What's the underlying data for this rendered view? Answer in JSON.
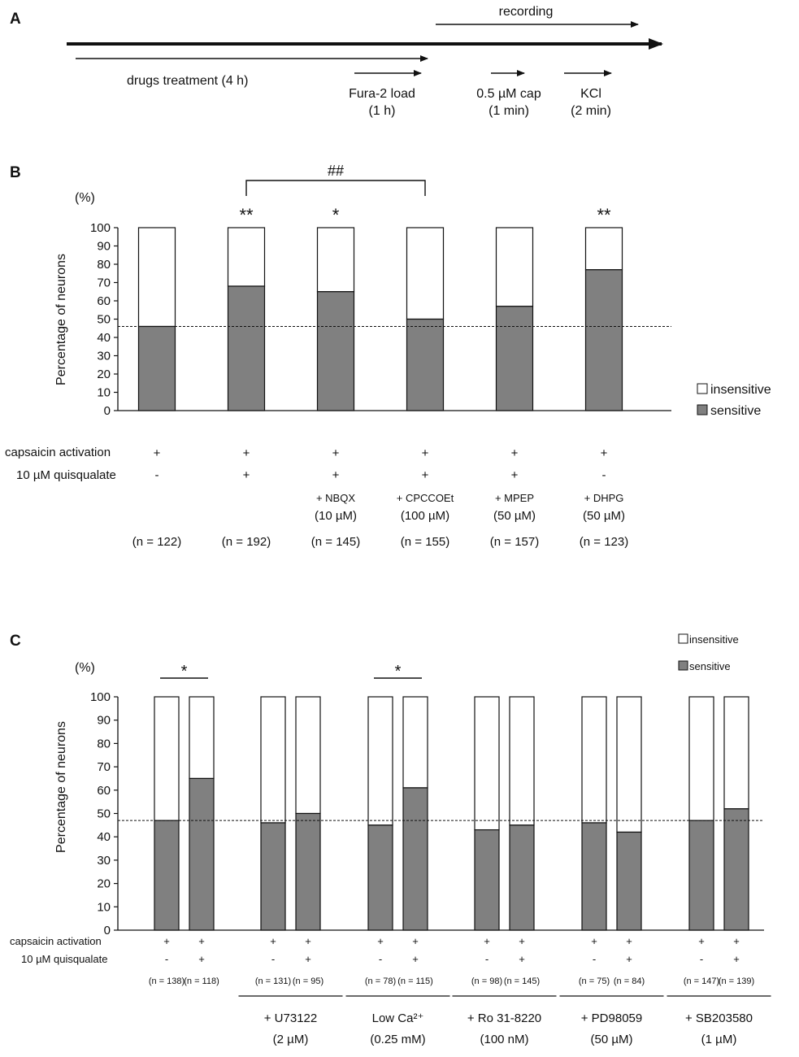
{
  "panel_a": {
    "letter": "A",
    "recording": "recording",
    "drugs_treatment": "drugs   treatment (4 h)",
    "fura_load": "Fura-2  load",
    "fura_time": "(1 h)",
    "cap": "0.5 µM cap",
    "cap_time": "(1 min)",
    "kcl": "KCl",
    "kcl_time": "(2 min)"
  },
  "chart_data": [
    {
      "panel": "B",
      "type": "bar",
      "stacked": true,
      "ylabel": "Percentage of neurons",
      "yunit": "(%)",
      "ylim": [
        0,
        100
      ],
      "yticks": [
        0,
        10,
        20,
        30,
        40,
        50,
        60,
        70,
        80,
        90,
        100
      ],
      "reference_line": 46,
      "legend": [
        "insensitive",
        "sensitive"
      ],
      "series": [
        {
          "name": "sensitive",
          "values": [
            46,
            68,
            65,
            50,
            57,
            77
          ]
        },
        {
          "name": "insensitive",
          "values": [
            54,
            32,
            35,
            50,
            43,
            23
          ]
        }
      ],
      "row_labels": [
        "capsaicin activation",
        "10 µM quisqualate"
      ],
      "capsaicin": [
        "+",
        "+",
        "+",
        "+",
        "+",
        "+"
      ],
      "quisqualate": [
        "-",
        "+",
        "+",
        "+",
        "+",
        "-"
      ],
      "treatments": [
        [
          "",
          ""
        ],
        [
          "",
          ""
        ],
        [
          "+ NBQX",
          "(10 µM)"
        ],
        [
          "+ CPCCOEt",
          "(100 µM)"
        ],
        [
          "+ MPEP",
          "(50 µM)"
        ],
        [
          "+ DHPG",
          "(50 µM)"
        ]
      ],
      "n": [
        "(n = 122)",
        "(n = 192)",
        "(n = 145)",
        "(n = 155)",
        "(n = 157)",
        "(n = 123)"
      ],
      "significance": [
        "",
        "**",
        "*",
        "",
        "",
        "**"
      ],
      "bracket": {
        "from": 1,
        "to": 3,
        "label": "##"
      }
    },
    {
      "panel": "C",
      "type": "bar",
      "stacked": true,
      "ylabel": "Percentage of neurons",
      "yunit": "(%)",
      "ylim": [
        0,
        100
      ],
      "yticks": [
        0,
        10,
        20,
        30,
        40,
        50,
        60,
        70,
        80,
        90,
        100
      ],
      "reference_line": 47,
      "legend": [
        "insensitive",
        "sensitive"
      ],
      "series": [
        {
          "name": "sensitive",
          "values": [
            47,
            65,
            46,
            50,
            45,
            61,
            43,
            45,
            46,
            42,
            47,
            52
          ]
        },
        {
          "name": "insensitive",
          "values": [
            53,
            35,
            54,
            50,
            55,
            39,
            57,
            55,
            54,
            58,
            53,
            48
          ]
        }
      ],
      "row_labels": [
        "capsaicin activation",
        "10 µM quisqualate"
      ],
      "capsaicin": [
        "+",
        "+",
        "+",
        "+",
        "+",
        "+",
        "+",
        "+",
        "+",
        "+",
        "+",
        "+"
      ],
      "quisqualate": [
        "-",
        "+",
        "-",
        "+",
        "-",
        "+",
        "-",
        "+",
        "-",
        "+",
        "-",
        "+"
      ],
      "n": [
        "(n = 138)",
        "(n = 118)",
        "(n = 131)",
        "(n = 95)",
        "(n = 78)",
        "(n = 115)",
        "(n = 98)",
        "(n = 145)",
        "(n = 75)",
        "(n = 84)",
        "(n = 147)",
        "(n = 139)"
      ],
      "groups": [
        {
          "label": "",
          "sub": ""
        },
        {
          "label": "+ U73122",
          "sub": "(2 µM)"
        },
        {
          "label": "Low Ca²⁺",
          "sub": "(0.25 mM)"
        },
        {
          "label": "+ Ro 31-8220",
          "sub": "(100 nM)"
        },
        {
          "label": "+ PD98059",
          "sub": "(50 µM)"
        },
        {
          "label": "+ SB203580",
          "sub": "(1 µM)"
        }
      ],
      "significance_pairs": [
        {
          "group": 0,
          "label": "*"
        },
        {
          "group": 2,
          "label": "*"
        }
      ]
    }
  ]
}
